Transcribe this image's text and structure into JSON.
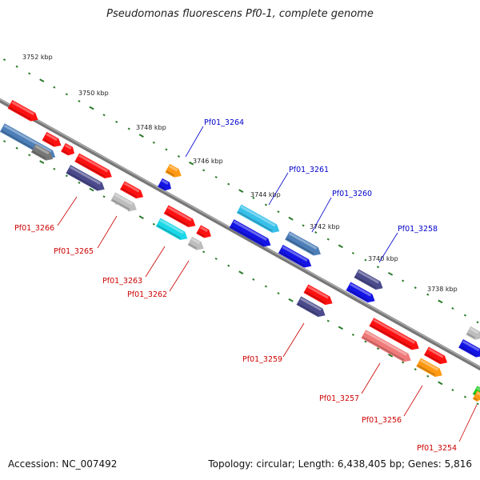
{
  "title": "Pseudomonas fluorescens Pf0-1, complete genome",
  "footer": {
    "accession": "Accession: NC_007492",
    "summary": "Topology: circular; Length: 6,438,405 bp; Genes: 5,816"
  },
  "kbp_labels": [
    "3752 kbp",
    "3750 kbp",
    "3748 kbp",
    "3746 kbp",
    "3744 kbp",
    "3742 kbp",
    "3740 kbp",
    "3738 kbp"
  ],
  "colors": {
    "red": "#ff1010",
    "grey": "#bdbdbd",
    "darkgrey": "#777777",
    "navy": "#4a4a8c",
    "blue": "#1414e6",
    "steelblue": "#4c7eb8",
    "cyan": "#1ad8e8",
    "skyblue": "#36c0ea",
    "orange": "#ff9a12",
    "pink": "#f07a7a",
    "green": "#22cc22",
    "tick": "#2a7a2a",
    "backbone": "#888888",
    "label_forward": "#0000cc",
    "label_reverse": "#cc0000"
  },
  "genes": [
    {
      "label": "Pf01_3266",
      "strand": "reverse"
    },
    {
      "label": "Pf01_3265",
      "strand": "reverse"
    },
    {
      "label": "Pf01_3264",
      "strand": "forward"
    },
    {
      "label": "Pf01_3263",
      "strand": "reverse"
    },
    {
      "label": "Pf01_3262",
      "strand": "reverse"
    },
    {
      "label": "Pf01_3261",
      "strand": "forward"
    },
    {
      "label": "Pf01_3260",
      "strand": "forward"
    },
    {
      "label": "Pf01_3259",
      "strand": "reverse"
    },
    {
      "label": "Pf01_3258",
      "strand": "forward"
    },
    {
      "label": "Pf01_3257",
      "strand": "reverse"
    },
    {
      "label": "Pf01_3256",
      "strand": "reverse"
    },
    {
      "label": "Pf01_3254",
      "strand": "reverse"
    }
  ]
}
